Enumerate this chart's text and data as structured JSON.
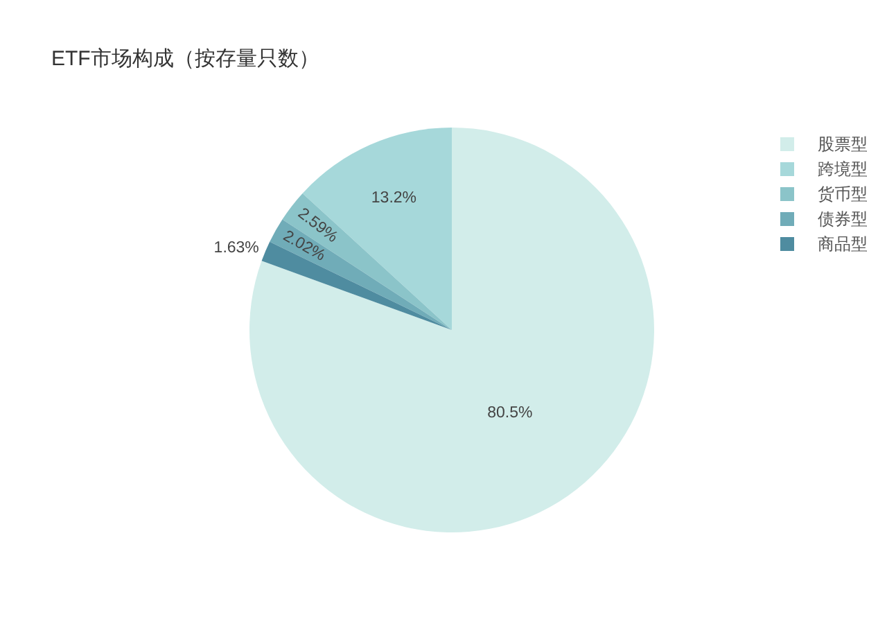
{
  "chart_data": {
    "type": "pie",
    "title": "ETF市场构成（按存量只数）",
    "categories": [
      "股票型",
      "跨境型",
      "货币型",
      "债券型",
      "商品型"
    ],
    "values": [
      80.5,
      13.2,
      2.59,
      2.02,
      1.63
    ],
    "colors": [
      "#d2edea",
      "#a6d8da",
      "#8bc4c9",
      "#70acb8",
      "#4f8ca0"
    ],
    "value_labels": [
      "80.5%",
      "13.2%",
      "2.59%",
      "2.02%",
      "1.63%"
    ],
    "legend": "top right"
  }
}
